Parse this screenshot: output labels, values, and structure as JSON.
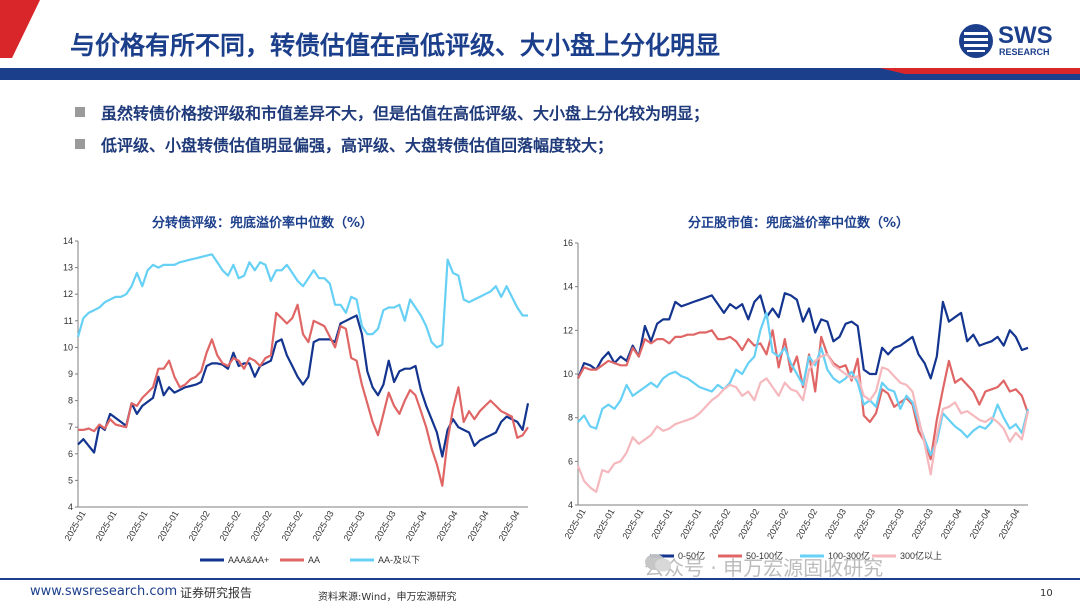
{
  "header": {
    "title": "与价格有所不同，转债估值在高低评级、大小盘上分化明显",
    "logo_text": "SWS",
    "logo_sub": "RESEARCH"
  },
  "bullets": [
    "虽然转债价格按评级和市值差异不大，但是估值在高低评级、大小盘上分化较为明显；",
    "低评级、小盘转债估值明显偏强，高评级、大盘转债估值回落幅度较大；"
  ],
  "colors": {
    "brand": "#1c3f8c",
    "accent_red": "#d9262b",
    "s1_dark": "#14358f",
    "s2_red": "#e06666",
    "s3_light": "#66d0f5",
    "s4_pink": "#f4b8bd"
  },
  "chart_data": [
    {
      "type": "line",
      "title": "分转债评级：兜底溢价率中位数（%）",
      "ylim": [
        4,
        14
      ],
      "yticks": [
        4,
        5,
        6,
        7,
        8,
        9,
        10,
        11,
        12,
        13,
        14
      ],
      "xtick_labels": [
        "2025-01",
        "2025-01",
        "2025-01",
        "2025-01",
        "2025-02",
        "2025-02",
        "2025-02",
        "2025-02",
        "2025-03",
        "2025-03",
        "2025-03",
        "2025-04",
        "2025-04",
        "2025-04",
        "2025-04"
      ],
      "legend_position": "bottom",
      "series": [
        {
          "name": "AAA&AA+",
          "color": "#14358f",
          "values": [
            6.35,
            6.55,
            6.3,
            6.05,
            7.05,
            6.9,
            7.5,
            7.35,
            7.2,
            7.05,
            7.9,
            7.5,
            7.8,
            7.95,
            8.1,
            8.9,
            8.2,
            8.5,
            8.3,
            8.4,
            8.5,
            8.55,
            8.6,
            8.7,
            9.3,
            9.4,
            9.4,
            9.35,
            9.2,
            9.8,
            9.3,
            9.4,
            9.4,
            8.9,
            9.3,
            9.4,
            9.5,
            10.2,
            10.3,
            9.7,
            9.3,
            8.9,
            8.6,
            8.9,
            10.2,
            10.3,
            10.3,
            10.3,
            10.2,
            10.9,
            11.0,
            11.1,
            11.2,
            10.5,
            9.1,
            8.5,
            8.2,
            8.6,
            9.5,
            8.7,
            9.1,
            9.2,
            9.2,
            9.3,
            8.4,
            7.8,
            7.3,
            6.8,
            5.9,
            6.9,
            7.3,
            7.0,
            6.9,
            6.8,
            6.3,
            6.5,
            6.6,
            6.7,
            6.8,
            7.2,
            7.4,
            7.3,
            7.2,
            6.9,
            7.9
          ]
        },
        {
          "name": "AA",
          "color": "#e06666",
          "values": [
            6.9,
            6.9,
            6.95,
            6.85,
            7.1,
            6.95,
            7.3,
            7.1,
            7.05,
            7.0,
            7.9,
            7.8,
            8.1,
            8.3,
            8.5,
            9.2,
            9.2,
            9.5,
            8.9,
            8.5,
            8.6,
            8.8,
            8.9,
            9.1,
            9.8,
            10.3,
            9.7,
            9.4,
            9.3,
            9.6,
            9.5,
            9.2,
            9.6,
            9.5,
            9.3,
            9.6,
            9.7,
            11.3,
            11.1,
            10.9,
            11.1,
            11.6,
            10.5,
            10.2,
            11.0,
            10.9,
            10.8,
            10.4,
            10.0,
            10.8,
            10.7,
            9.6,
            9.5,
            8.6,
            7.9,
            7.2,
            6.7,
            7.5,
            8.3,
            7.8,
            7.5,
            8.0,
            8.4,
            8.2,
            7.6,
            7.0,
            6.2,
            5.6,
            4.8,
            6.5,
            7.7,
            8.5,
            7.2,
            7.6,
            7.3,
            7.6,
            7.8,
            8.0,
            7.8,
            7.6,
            7.5,
            7.4,
            6.6,
            6.7,
            7.0
          ]
        },
        {
          "name": "AA-及以下",
          "color": "#66d0f5",
          "values": [
            10.4,
            11.1,
            11.3,
            11.4,
            11.5,
            11.7,
            11.8,
            11.9,
            11.9,
            12.0,
            12.3,
            12.8,
            12.3,
            12.9,
            13.1,
            13.0,
            13.1,
            13.1,
            13.1,
            13.2,
            13.25,
            13.3,
            13.35,
            13.4,
            13.45,
            13.5,
            13.2,
            12.9,
            12.7,
            13.1,
            12.6,
            12.7,
            13.2,
            12.9,
            13.2,
            13.1,
            12.5,
            12.9,
            12.9,
            13.1,
            12.8,
            12.5,
            12.3,
            12.6,
            12.9,
            12.6,
            12.6,
            12.4,
            11.6,
            11.6,
            11.3,
            11.9,
            11.8,
            10.8,
            10.5,
            10.5,
            10.7,
            11.4,
            11.5,
            11.5,
            11.6,
            11.0,
            11.8,
            11.5,
            11.2,
            10.8,
            10.2,
            10.0,
            10.1,
            13.3,
            12.8,
            12.7,
            11.8,
            11.7,
            11.8,
            11.9,
            12.0,
            12.1,
            12.3,
            11.9,
            12.3,
            11.9,
            11.5,
            11.2,
            11.2
          ]
        }
      ]
    },
    {
      "type": "line",
      "title": "分正股市值：兜底溢价率中位数（%）",
      "ylim": [
        4,
        16
      ],
      "yticks": [
        4,
        6,
        8,
        10,
        12,
        14,
        16
      ],
      "xtick_labels": [
        "2025-01",
        "2025-01",
        "2025-01",
        "2025-01",
        "2025-01",
        "2025-02",
        "2025-02",
        "2025-02",
        "2025-02",
        "2025-03",
        "2025-03",
        "2025-03",
        "2025-03",
        "2025-04",
        "2025-04",
        "2025-04"
      ],
      "legend_position": "bottom",
      "series": [
        {
          "name": "0-50亿",
          "color": "#14358f",
          "values": [
            9.8,
            10.5,
            10.4,
            10.2,
            10.7,
            11.0,
            10.5,
            10.8,
            10.6,
            11.3,
            10.8,
            12.2,
            11.5,
            12.3,
            12.5,
            12.5,
            13.3,
            13.1,
            13.2,
            13.3,
            13.4,
            13.5,
            13.6,
            13.2,
            12.8,
            13.2,
            13.0,
            13.2,
            12.5,
            13.3,
            13.6,
            12.6,
            13.0,
            12.6,
            13.7,
            13.6,
            13.4,
            12.4,
            13.0,
            11.9,
            12.5,
            12.4,
            11.5,
            11.7,
            12.3,
            12.4,
            12.2,
            10.2,
            10.0,
            10.0,
            11.2,
            10.9,
            11.2,
            11.3,
            11.5,
            11.7,
            10.9,
            10.5,
            9.8,
            10.8,
            13.3,
            12.4,
            12.6,
            12.8,
            11.5,
            11.8,
            11.3,
            11.4,
            11.5,
            11.7,
            11.3,
            12.0,
            11.7,
            11.1,
            11.2
          ]
        },
        {
          "name": "50-100亿",
          "color": "#e06666",
          "values": [
            9.8,
            10.3,
            10.2,
            10.2,
            10.4,
            10.6,
            10.5,
            10.4,
            10.4,
            11.2,
            10.8,
            11.6,
            11.4,
            11.6,
            11.6,
            11.4,
            11.7,
            11.7,
            11.8,
            11.8,
            11.9,
            11.9,
            12.0,
            11.6,
            11.6,
            11.7,
            11.5,
            11.1,
            11.6,
            11.3,
            11.4,
            10.9,
            12.0,
            10.3,
            11.6,
            10.1,
            10.8,
            9.4,
            10.9,
            9.2,
            11.7,
            10.9,
            10.5,
            10.3,
            10.4,
            9.7,
            10.7,
            8.1,
            7.8,
            8.2,
            9.3,
            9.1,
            8.5,
            8.7,
            8.9,
            8.6,
            7.4,
            6.9,
            6.1,
            7.9,
            9.3,
            10.6,
            9.6,
            9.8,
            9.5,
            9.2,
            8.6,
            9.2,
            9.3,
            9.4,
            9.7,
            9.2,
            9.3,
            9.0,
            8.2
          ]
        },
        {
          "name": "100-300亿",
          "color": "#66d0f5",
          "values": [
            7.8,
            8.1,
            7.6,
            7.5,
            8.4,
            8.6,
            8.4,
            8.8,
            9.5,
            9.0,
            9.2,
            9.4,
            9.6,
            9.4,
            9.8,
            10.0,
            10.1,
            9.9,
            9.8,
            9.6,
            9.4,
            9.3,
            9.2,
            9.5,
            9.3,
            9.6,
            10.2,
            10.0,
            10.5,
            10.8,
            12.0,
            12.8,
            11.0,
            10.8,
            11.2,
            10.5,
            10.0,
            9.5,
            10.8,
            10.4,
            11.2,
            10.2,
            9.8,
            9.6,
            9.8,
            10.1,
            9.6,
            8.6,
            8.8,
            8.5,
            9.6,
            9.3,
            9.2,
            8.4,
            9.0,
            8.7,
            7.8,
            7.0,
            6.3,
            6.9,
            8.2,
            7.9,
            7.6,
            7.4,
            7.1,
            7.4,
            7.6,
            7.5,
            7.8,
            8.6,
            8.0,
            7.5,
            7.7,
            7.3,
            8.4
          ]
        },
        {
          "name": "300亿以上",
          "color": "#f4b8bd",
          "values": [
            5.8,
            5.1,
            4.8,
            4.6,
            5.6,
            5.5,
            5.9,
            6.0,
            6.4,
            7.1,
            6.8,
            7.0,
            7.2,
            7.6,
            7.4,
            7.5,
            7.7,
            7.8,
            7.9,
            8.0,
            8.2,
            8.5,
            8.8,
            9.0,
            9.3,
            9.5,
            9.4,
            9.0,
            9.2,
            8.8,
            9.6,
            9.8,
            9.4,
            9.0,
            9.6,
            9.3,
            9.2,
            8.8,
            10.2,
            10.6,
            10.8,
            10.9,
            10.4,
            10.2,
            10.0,
            9.8,
            9.9,
            9.0,
            8.8,
            9.2,
            10.3,
            10.2,
            9.9,
            9.6,
            9.5,
            9.2,
            8.0,
            6.8,
            5.4,
            7.2,
            8.4,
            8.5,
            8.7,
            8.2,
            8.3,
            8.1,
            7.9,
            7.8,
            8.0,
            7.8,
            7.5,
            6.9,
            7.3,
            7.0,
            8.3
          ]
        }
      ]
    }
  ],
  "footer": {
    "url": "www.swsresearch.com",
    "report_label": "证券研究报告",
    "source": "资料来源:Wind，申万宏源研究",
    "page_number": "10"
  },
  "watermark": "公众号 · 申万宏源固收研究"
}
